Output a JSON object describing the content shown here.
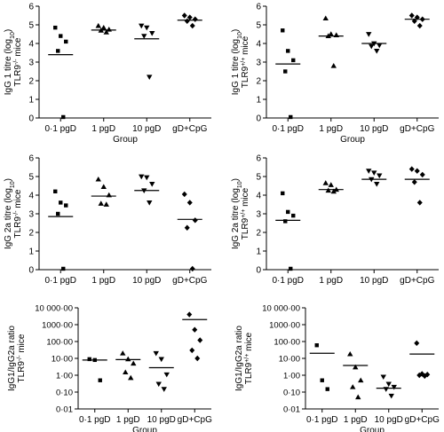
{
  "chart_data": [
    {
      "type": "scatter",
      "scale": "linear",
      "yticks": [
        0,
        1,
        2,
        3,
        4,
        5,
        6
      ],
      "ytick_labels": [
        "0",
        "1",
        "2",
        "3",
        "4",
        "5",
        "6"
      ],
      "ylim": [
        0,
        6
      ],
      "ylabel_lines": [
        "IgG 1 titre (log10)",
        "TLR9-/- mice"
      ],
      "xlabel": "Group",
      "categories": [
        "0·1 pgD",
        "1 pgD",
        "10 pgD",
        "gD+CpG"
      ],
      "markers": [
        "circle",
        "triangle-up",
        "triangle-down",
        "diamond"
      ],
      "points": [
        [
          4.85,
          4.4,
          4.1,
          3.6,
          0.05
        ],
        [
          4.95,
          4.85,
          4.75,
          4.7,
          4.6
        ],
        [
          4.95,
          4.85,
          4.55,
          4.4,
          2.2
        ],
        [
          5.5,
          5.4,
          5.3,
          5.2,
          4.95
        ]
      ],
      "means": [
        3.4,
        4.72,
        4.25,
        5.25
      ]
    },
    {
      "type": "scatter",
      "scale": "linear",
      "yticks": [
        0,
        1,
        2,
        3,
        4,
        5,
        6
      ],
      "ytick_labels": [
        "0",
        "1",
        "2",
        "3",
        "4",
        "5",
        "6"
      ],
      "ylim": [
        0,
        6
      ],
      "ylabel_lines": [
        "IgG 1 titre (log10)",
        "TLR9+/+ mice"
      ],
      "xlabel": "Group",
      "categories": [
        "0·1 pgD",
        "1 pgD",
        "10 pgD",
        "gD+CpG"
      ],
      "markers": [
        "circle",
        "triangle-up",
        "triangle-down",
        "diamond"
      ],
      "points": [
        [
          4.7,
          3.6,
          3.1,
          2.5,
          0.05
        ],
        [
          5.35,
          4.5,
          4.45,
          4.4,
          2.8
        ],
        [
          4.5,
          4.0,
          3.9,
          3.85,
          3.6
        ],
        [
          5.5,
          5.4,
          5.3,
          5.2,
          4.95
        ]
      ],
      "means": [
        2.9,
        4.4,
        4.0,
        5.3
      ]
    },
    {
      "type": "scatter",
      "scale": "linear",
      "yticks": [
        0,
        1,
        2,
        3,
        4,
        5,
        6
      ],
      "ytick_labels": [
        "0",
        "1",
        "2",
        "3",
        "4",
        "5",
        "6"
      ],
      "ylim": [
        0,
        6
      ],
      "ylabel_lines": [
        "IgG 2a titre (log10)",
        "TLR9-/- mice"
      ],
      "xlabel": "",
      "categories": [
        "0·1 pgD",
        "1 pgD",
        "10 pgD",
        "gD+CpG"
      ],
      "markers": [
        "circle",
        "triangle-up",
        "triangle-down",
        "diamond"
      ],
      "points": [
        [
          4.2,
          3.6,
          3.45,
          3.0,
          0.05
        ],
        [
          4.85,
          4.45,
          4.0,
          3.55,
          3.5
        ],
        [
          5.0,
          4.95,
          4.6,
          4.25,
          3.6
        ],
        [
          4.05,
          3.6,
          2.65,
          2.25,
          0.05
        ]
      ],
      "means": [
        2.85,
        3.95,
        4.25,
        2.7
      ]
    },
    {
      "type": "scatter",
      "scale": "linear",
      "yticks": [
        0,
        1,
        2,
        3,
        4,
        5,
        6
      ],
      "ytick_labels": [
        "0",
        "1",
        "2",
        "3",
        "4",
        "5",
        "6"
      ],
      "ylim": [
        0,
        6
      ],
      "ylabel_lines": [
        "IgG 2a titre (log10)",
        "TLR9+/+ mice"
      ],
      "xlabel": "",
      "categories": [
        "0·1 pgD",
        "1 pgD",
        "10 pgD",
        "gD+CpG"
      ],
      "markers": [
        "circle",
        "triangle-up",
        "triangle-down",
        "diamond"
      ],
      "points": [
        [
          4.1,
          3.1,
          2.9,
          2.6,
          0.05
        ],
        [
          4.65,
          4.55,
          4.3,
          4.25,
          4.2
        ],
        [
          5.3,
          5.2,
          5.05,
          4.85,
          4.6
        ],
        [
          5.4,
          5.3,
          5.1,
          4.7,
          3.6
        ]
      ],
      "means": [
        2.65,
        4.3,
        4.85,
        4.85
      ]
    },
    {
      "type": "scatter",
      "scale": "log",
      "yticks": [
        0.01,
        0.1,
        1,
        10,
        100,
        1000,
        10000
      ],
      "ytick_labels": [
        "0·01",
        "0·10",
        "1·00",
        "10·00",
        "100·00",
        "1000·00",
        "10 000·00"
      ],
      "ylim": [
        0.01,
        10000
      ],
      "ylabel_lines": [
        "IgG1/IgG2a ratio",
        "TLR9-/- mice"
      ],
      "xlabel": "Group",
      "categories": [
        "0·1 pgD",
        "1 pgD",
        "10 pgD",
        "gD+CpG"
      ],
      "markers": [
        "circle",
        "triangle-up",
        "triangle-down",
        "diamond"
      ],
      "points": [
        [
          9,
          8,
          0.5
        ],
        [
          20,
          9,
          5,
          1.5,
          0.7
        ],
        [
          20,
          9,
          1.1,
          0.3,
          0.15
        ],
        [
          4000,
          500,
          120,
          30,
          10
        ]
      ],
      "means": [
        8,
        8.5,
        2.8,
        2000
      ]
    },
    {
      "type": "scatter",
      "scale": "log",
      "yticks": [
        0.01,
        0.1,
        1,
        10,
        100,
        1000,
        10000
      ],
      "ytick_labels": [
        "0·01",
        "0·10",
        "1·00",
        "10·00",
        "100·00",
        "1000·00",
        "10 000·00"
      ],
      "ylim": [
        0.01,
        10000
      ],
      "ylabel_lines": [
        "IgG1/IgG2a ratio",
        "TLR9+/+ mice"
      ],
      "xlabel": "Group",
      "categories": [
        "0·1 pgD",
        "1 pgD",
        "10 pgD",
        "gD+CpG"
      ],
      "markers": [
        "circle",
        "triangle-up",
        "triangle-down",
        "diamond"
      ],
      "points": [
        [
          60,
          0.5,
          0.15
        ],
        [
          18,
          3,
          0.5,
          0.2,
          0.05
        ],
        [
          0.8,
          0.3,
          0.2,
          0.15,
          0.06
        ],
        [
          80,
          1.2,
          1.1,
          1.0,
          0.9
        ]
      ],
      "means": [
        20,
        3.8,
        0.17,
        18
      ]
    }
  ]
}
